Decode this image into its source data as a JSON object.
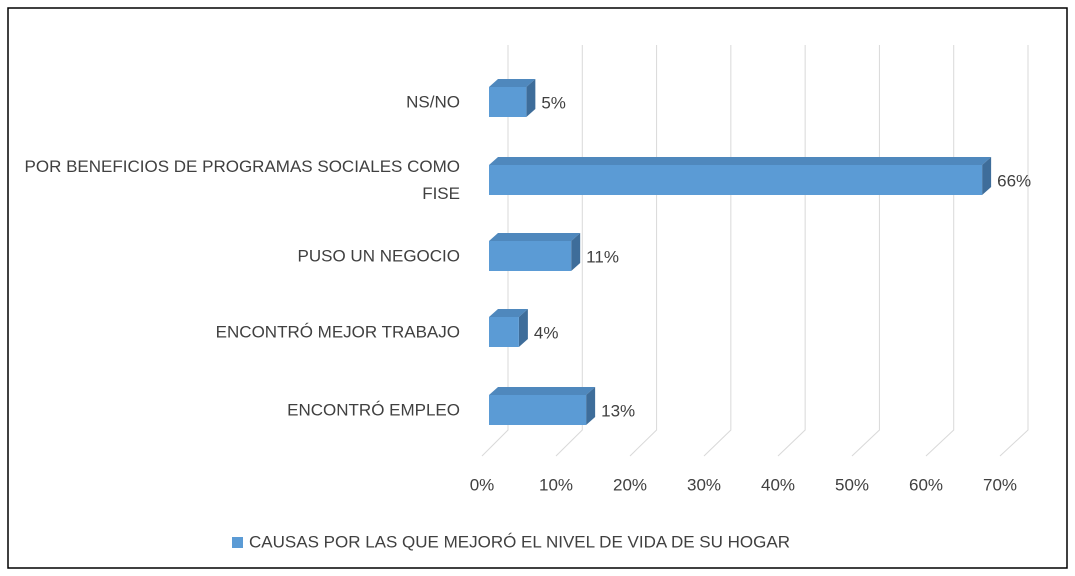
{
  "chart_data": {
    "type": "bar3d_horizontal",
    "categories": [
      "NS/NO",
      "POR BENEFICIOS DE PROGRAMAS SOCIALES COMO FISE",
      "PUSO UN NEGOCIO",
      "ENCONTRÓ MEJOR TRABAJO",
      "ENCONTRÓ EMPLEO"
    ],
    "series": [
      {
        "name": "CAUSAS POR LAS QUE MEJORÓ EL NIVEL DE VIDA DE SU HOGAR",
        "color": "#5b9bd5",
        "values": [
          5,
          66,
          11,
          4,
          13
        ],
        "value_labels": [
          "5%",
          "66%",
          "11%",
          "4%",
          "13%"
        ]
      }
    ],
    "xlim": [
      0,
      70
    ],
    "xticks": [
      {
        "value": 0,
        "label": "0%"
      },
      {
        "value": 10,
        "label": "10%"
      },
      {
        "value": 20,
        "label": "20%"
      },
      {
        "value": 30,
        "label": "30%"
      },
      {
        "value": 40,
        "label": "40%"
      },
      {
        "value": 50,
        "label": "50%"
      },
      {
        "value": 60,
        "label": "60%"
      },
      {
        "value": 70,
        "label": "70%"
      }
    ],
    "grid": true,
    "legend": "bottom"
  }
}
